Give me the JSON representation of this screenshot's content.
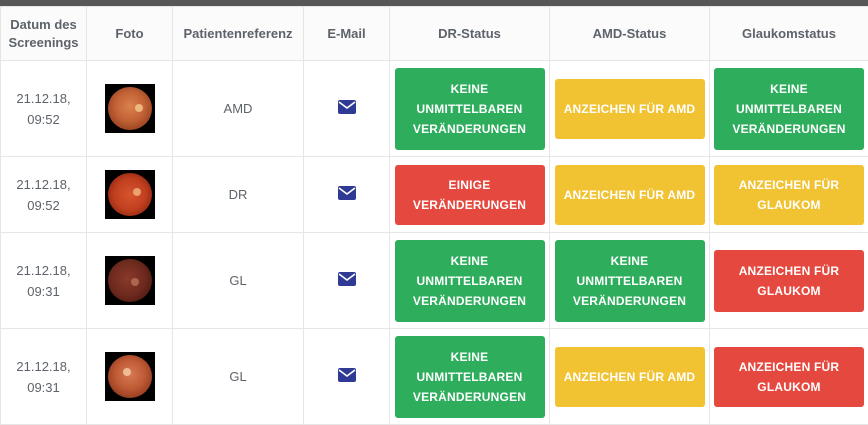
{
  "colors": {
    "green": "#2eae5c",
    "yellow": "#f1c232",
    "red": "#e5483f",
    "header_bar": "#575757",
    "link": "#3a43a0"
  },
  "columns": {
    "date": "Datum des Screenings",
    "photo": "Foto",
    "reference": "Patientenreferenz",
    "email": "E-Mail",
    "dr": "DR-Status",
    "amd": "AMD-Status",
    "glaucoma": "Glaukomstatus"
  },
  "rows": [
    {
      "date_line1": "21.12.18,",
      "date_line2": "09:52",
      "photo_icon": "fundus-image",
      "reference": "AMD",
      "email_icon": "envelope-icon",
      "dr": {
        "label": "KEINE UNMITTELBAREN VERÄNDERUNGEN",
        "level": "green"
      },
      "amd": {
        "label": "ANZEICHEN FÜR AMD",
        "level": "yellow"
      },
      "glaucoma": {
        "label": "KEINE UNMITTELBAREN VERÄNDERUNGEN",
        "level": "green"
      }
    },
    {
      "date_line1": "21.12.18,",
      "date_line2": "09:52",
      "photo_icon": "fundus-image",
      "reference": "DR",
      "email_icon": "envelope-icon",
      "dr": {
        "label": "EINIGE VERÄNDERUNGEN",
        "level": "red"
      },
      "amd": {
        "label": "ANZEICHEN FÜR AMD",
        "level": "yellow"
      },
      "glaucoma": {
        "label": "ANZEICHEN FÜR GLAUKOM",
        "level": "yellow"
      }
    },
    {
      "date_line1": "21.12.18,",
      "date_line2": "09:31",
      "photo_icon": "fundus-image",
      "reference": "GL",
      "email_icon": "envelope-icon",
      "dr": {
        "label": "KEINE UNMITTELBAREN VERÄNDERUNGEN",
        "level": "green"
      },
      "amd": {
        "label": "KEINE UNMITTELBAREN VERÄNDERUNGEN",
        "level": "green"
      },
      "glaucoma": {
        "label": "ANZEICHEN FÜR GLAUKOM",
        "level": "red"
      }
    },
    {
      "date_line1": "21.12.18,",
      "date_line2": "09:31",
      "photo_icon": "fundus-image",
      "reference": "GL",
      "email_icon": "envelope-icon",
      "dr": {
        "label": "KEINE UNMITTELBAREN VERÄNDERUNGEN",
        "level": "green"
      },
      "amd": {
        "label": "ANZEICHEN FÜR AMD",
        "level": "yellow"
      },
      "glaucoma": {
        "label": "ANZEICHEN FÜR GLAUKOM",
        "level": "red"
      }
    }
  ]
}
